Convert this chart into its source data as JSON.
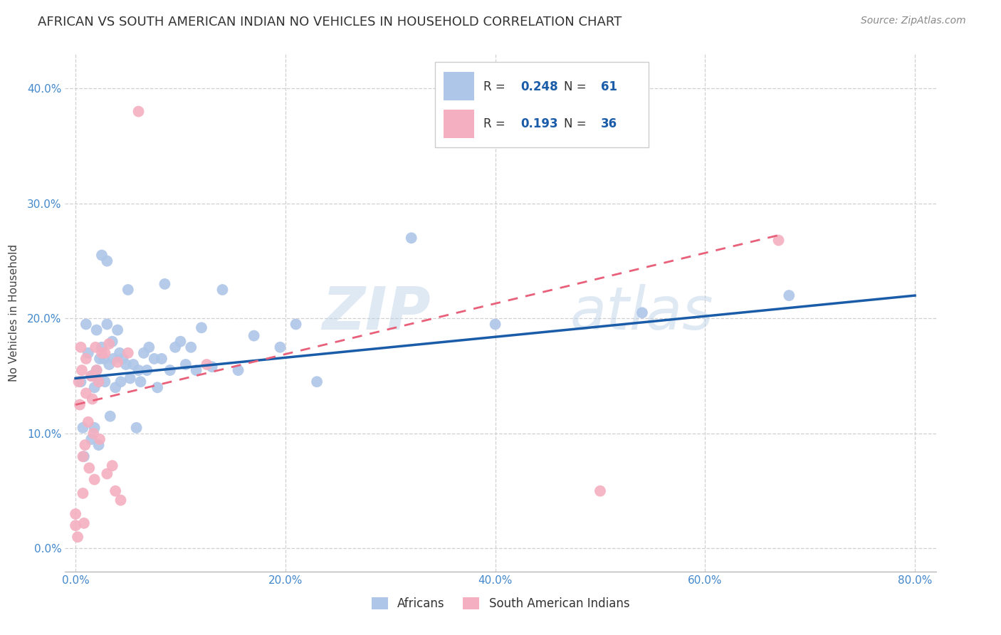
{
  "title": "AFRICAN VS SOUTH AMERICAN INDIAN NO VEHICLES IN HOUSEHOLD CORRELATION CHART",
  "source": "Source: ZipAtlas.com",
  "xlabel_ticks": [
    "0.0%",
    "20.0%",
    "40.0%",
    "60.0%",
    "80.0%"
  ],
  "ylabel_ticks": [
    "0.0%",
    "10.0%",
    "20.0%",
    "30.0%",
    "40.0%"
  ],
  "xlabel_tick_vals": [
    0,
    0.2,
    0.4,
    0.6,
    0.8
  ],
  "ylabel_tick_vals": [
    0,
    0.1,
    0.2,
    0.3,
    0.4
  ],
  "xlim": [
    -0.01,
    0.82
  ],
  "ylim": [
    -0.02,
    0.43
  ],
  "ylabel": "No Vehicles in Household",
  "africans_color": "#aec6e8",
  "south_american_color": "#f4afc0",
  "africans_line_color": "#1a5ca8",
  "south_american_line_color": "#e8607a",
  "africans_R": 0.248,
  "africans_N": 61,
  "south_american_R": 0.193,
  "south_american_N": 36,
  "legend_labels": [
    "Africans",
    "South American Indians"
  ],
  "watermark_zip": "ZIP",
  "watermark_atlas": "atlas",
  "title_fontsize": 13,
  "background_color": "#ffffff",
  "grid_color": "#d0d0d0",
  "africans_line_intercept": 0.148,
  "africans_line_slope": 0.09,
  "south_american_line_intercept": 0.125,
  "south_american_line_slope": 0.22,
  "africans_x": [
    0.005,
    0.007,
    0.008,
    0.01,
    0.012,
    0.015,
    0.015,
    0.018,
    0.018,
    0.02,
    0.02,
    0.022,
    0.022,
    0.023,
    0.025,
    0.025,
    0.027,
    0.028,
    0.03,
    0.03,
    0.032,
    0.033,
    0.035,
    0.036,
    0.038,
    0.04,
    0.042,
    0.043,
    0.045,
    0.048,
    0.05,
    0.052,
    0.055,
    0.058,
    0.06,
    0.062,
    0.065,
    0.068,
    0.07,
    0.075,
    0.078,
    0.082,
    0.085,
    0.09,
    0.095,
    0.1,
    0.105,
    0.11,
    0.115,
    0.12,
    0.13,
    0.14,
    0.155,
    0.17,
    0.195,
    0.21,
    0.23,
    0.32,
    0.4,
    0.54,
    0.68
  ],
  "africans_y": [
    0.145,
    0.105,
    0.08,
    0.195,
    0.17,
    0.15,
    0.095,
    0.14,
    0.105,
    0.19,
    0.155,
    0.145,
    0.09,
    0.165,
    0.255,
    0.175,
    0.165,
    0.145,
    0.25,
    0.195,
    0.16,
    0.115,
    0.18,
    0.165,
    0.14,
    0.19,
    0.17,
    0.145,
    0.165,
    0.16,
    0.225,
    0.148,
    0.16,
    0.105,
    0.155,
    0.145,
    0.17,
    0.155,
    0.175,
    0.165,
    0.14,
    0.165,
    0.23,
    0.155,
    0.175,
    0.18,
    0.16,
    0.175,
    0.155,
    0.192,
    0.158,
    0.225,
    0.155,
    0.185,
    0.175,
    0.195,
    0.145,
    0.27,
    0.195,
    0.205,
    0.22
  ],
  "south_american_x": [
    0.0,
    0.0,
    0.002,
    0.003,
    0.004,
    0.005,
    0.006,
    0.007,
    0.007,
    0.008,
    0.009,
    0.01,
    0.01,
    0.012,
    0.013,
    0.015,
    0.016,
    0.017,
    0.018,
    0.019,
    0.02,
    0.022,
    0.023,
    0.025,
    0.028,
    0.03,
    0.032,
    0.035,
    0.038,
    0.04,
    0.043,
    0.05,
    0.06,
    0.125,
    0.5,
    0.67
  ],
  "south_american_y": [
    0.03,
    0.02,
    0.01,
    0.145,
    0.125,
    0.175,
    0.155,
    0.08,
    0.048,
    0.022,
    0.09,
    0.165,
    0.135,
    0.11,
    0.07,
    0.15,
    0.13,
    0.1,
    0.06,
    0.175,
    0.155,
    0.145,
    0.095,
    0.17,
    0.17,
    0.065,
    0.178,
    0.072,
    0.05,
    0.162,
    0.042,
    0.17,
    0.38,
    0.16,
    0.05,
    0.268
  ]
}
